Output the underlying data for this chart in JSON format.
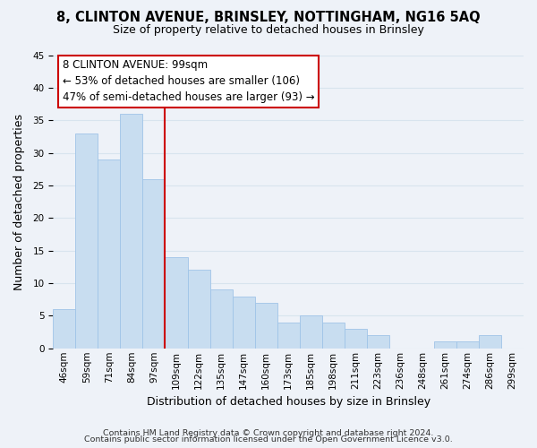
{
  "title": "8, CLINTON AVENUE, BRINSLEY, NOTTINGHAM, NG16 5AQ",
  "subtitle": "Size of property relative to detached houses in Brinsley",
  "xlabel": "Distribution of detached houses by size in Brinsley",
  "ylabel": "Number of detached properties",
  "bar_labels": [
    "46sqm",
    "59sqm",
    "71sqm",
    "84sqm",
    "97sqm",
    "109sqm",
    "122sqm",
    "135sqm",
    "147sqm",
    "160sqm",
    "173sqm",
    "185sqm",
    "198sqm",
    "211sqm",
    "223sqm",
    "236sqm",
    "248sqm",
    "261sqm",
    "274sqm",
    "286sqm",
    "299sqm"
  ],
  "bar_values": [
    6,
    33,
    29,
    36,
    26,
    14,
    12,
    9,
    8,
    7,
    4,
    5,
    4,
    3,
    2,
    0,
    0,
    1,
    1,
    2,
    0
  ],
  "bar_color": "#c8ddf0",
  "bar_edge_color": "#a0c4e8",
  "vline_index": 4,
  "vline_color": "#cc0000",
  "ylim": [
    0,
    45
  ],
  "yticks": [
    0,
    5,
    10,
    15,
    20,
    25,
    30,
    35,
    40,
    45
  ],
  "annotation_title": "8 CLINTON AVENUE: 99sqm",
  "annotation_line1": "← 53% of detached houses are smaller (106)",
  "annotation_line2": "47% of semi-detached houses are larger (93) →",
  "annotation_box_facecolor": "#ffffff",
  "annotation_box_edgecolor": "#cc0000",
  "footer_line1": "Contains HM Land Registry data © Crown copyright and database right 2024.",
  "footer_line2": "Contains public sector information licensed under the Open Government Licence v3.0.",
  "grid_color": "#d8e4ee",
  "background_color": "#eef2f8",
  "title_fontsize": 10.5,
  "subtitle_fontsize": 9,
  "axis_label_fontsize": 9,
  "tick_fontsize": 7.5,
  "annotation_fontsize": 8.5,
  "footer_fontsize": 6.8
}
